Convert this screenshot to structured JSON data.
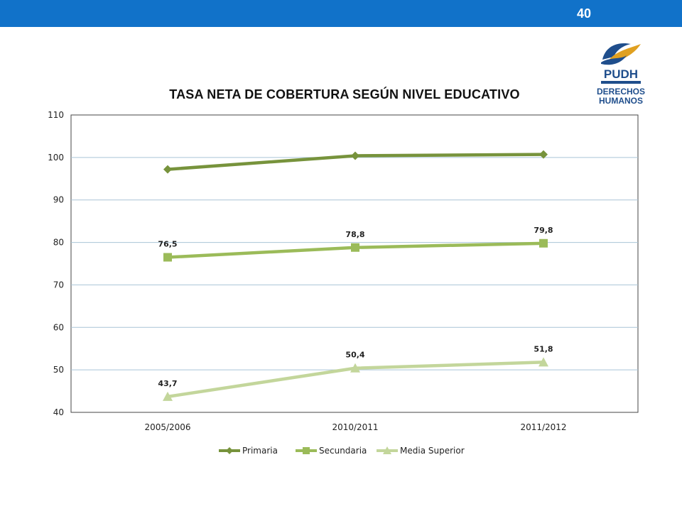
{
  "header": {
    "page_number": "40",
    "bar_color": "#1172c9"
  },
  "logo": {
    "acronym": "PUDH",
    "line1": "DERECHOS",
    "line2": "HUMANOS",
    "icon": "dove-icon"
  },
  "chart_data": {
    "type": "line",
    "title": "TASA NETA DE COBERTURA SEGÚN NIVEL EDUCATIVO",
    "xlabel": "",
    "ylabel": "",
    "categories": [
      "2005/2006",
      "2010/2011",
      "2011/2012"
    ],
    "ylim": [
      40,
      110
    ],
    "yticks": [
      40,
      50,
      60,
      70,
      80,
      90,
      100,
      110
    ],
    "grid": true,
    "legend_position": "bottom",
    "series": [
      {
        "name": "Primaria",
        "values": [
          97.2,
          100.4,
          100.7
        ],
        "color": "#77933c",
        "marker": "diamond",
        "labels": [
          "",
          "",
          ""
        ]
      },
      {
        "name": "Secundaria",
        "values": [
          76.5,
          78.8,
          79.8
        ],
        "color": "#9bbb59",
        "marker": "square",
        "labels": [
          "76,5",
          "78,8",
          "79,8"
        ]
      },
      {
        "name": "Media Superior",
        "values": [
          43.7,
          50.4,
          51.8
        ],
        "color": "#c3d69b",
        "marker": "triangle",
        "labels": [
          "43,7",
          "50,4",
          "51,8"
        ]
      }
    ]
  }
}
